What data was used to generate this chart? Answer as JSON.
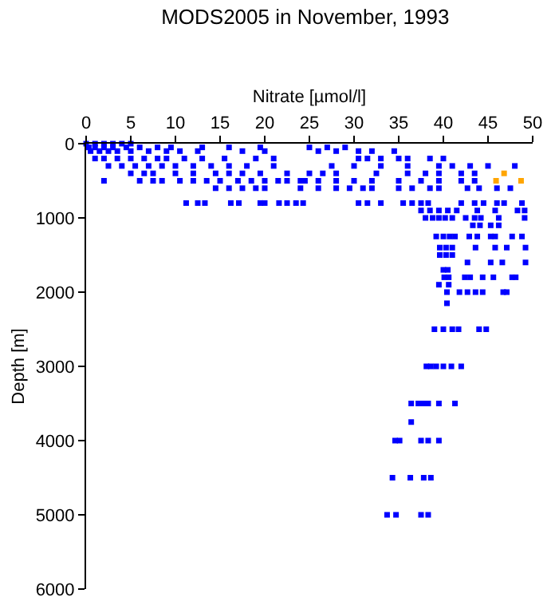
{
  "chart_data": {
    "type": "scatter",
    "title": "MODS2005 in November, 1993",
    "xlabel": "Nitrate [µmol/l]",
    "ylabel": "Depth [m]",
    "xlim": [
      0,
      50
    ],
    "xticks": [
      0,
      5,
      10,
      15,
      20,
      25,
      30,
      35,
      40,
      45,
      50
    ],
    "ylim": [
      6000,
      0
    ],
    "yticks": [
      0,
      1000,
      2000,
      3000,
      4000,
      5000,
      6000
    ],
    "marker": "square",
    "series": [
      {
        "color": "#0000ff",
        "x": [
          0,
          1,
          2,
          3,
          4,
          5,
          0.3,
          1,
          2,
          3,
          4.5,
          6,
          8,
          9.5,
          13,
          16,
          19.5,
          25,
          27,
          29,
          0.5,
          1.5,
          2.5,
          3.5,
          5,
          7,
          9,
          10.5,
          12.5,
          17.5,
          20,
          26,
          28,
          30.5,
          32,
          34.5,
          1,
          2,
          3.5,
          5,
          6.5,
          8,
          9,
          11,
          13,
          15.5,
          19,
          21,
          30.5,
          31.5,
          33,
          35,
          36,
          38.5,
          40,
          2.5,
          4,
          5.5,
          7,
          8.5,
          10,
          12,
          14,
          16,
          18,
          21,
          27.5,
          30,
          33,
          36,
          39.5,
          41,
          43,
          45,
          48,
          5,
          6.5,
          7.5,
          10,
          12,
          14.5,
          16,
          17.5,
          19.5,
          22.5,
          25,
          26.5,
          28,
          32.5,
          36,
          38,
          39.5,
          42,
          43.5,
          2,
          6,
          7.5,
          8.5,
          10.5,
          12,
          13.5,
          15,
          17,
          18.5,
          20,
          21.5,
          22.5,
          24,
          24.5,
          26,
          28,
          30,
          32,
          35,
          37.5,
          39.5,
          42,
          43.5,
          14.5,
          16,
          17.5,
          19,
          20,
          24,
          26,
          28,
          29.5,
          31,
          32,
          35,
          36.5,
          38.5,
          39.5,
          42.7,
          44,
          46,
          47.5,
          11.2,
          12.5,
          13.3,
          16.2,
          17.1,
          19.5,
          20,
          21.6,
          22.5,
          23.5,
          24.3,
          30.5,
          31.5,
          33,
          35.5,
          36.5,
          37.5,
          38.3,
          42,
          43.5,
          44.5,
          46,
          46.8,
          48.8,
          37.5,
          38.5,
          39.5,
          40.5,
          41.5,
          43.8,
          45.8,
          48.3,
          49.1,
          38,
          38.8,
          39.5,
          40.2,
          41,
          42.5,
          43.5,
          44.2,
          46.2,
          49.1,
          43.3,
          44.1,
          45.3,
          46.2,
          39.2,
          40,
          40.7,
          41.3,
          42.9,
          43.8,
          45.3,
          45.8,
          47.7,
          48.8,
          39.6,
          40.3,
          41,
          43.6,
          45.8,
          47.1,
          49.2,
          39.6,
          40.3,
          41,
          42.7,
          45.3,
          46.6,
          49.2,
          40,
          40.5,
          40.1,
          40.6,
          42.4,
          43,
          44.4,
          45.6,
          47.7,
          48.1,
          39.5,
          40.6,
          40.4,
          41.8,
          42.7,
          43.6,
          44.4,
          46.7,
          47.1,
          40.4,
          39,
          40,
          41,
          41.7,
          44,
          44.8,
          38.1,
          38.6,
          39.2,
          40,
          40.9,
          42,
          36.4,
          37.2,
          37.8,
          38.3,
          39.5,
          41.3,
          36.4,
          34.6,
          35.1,
          37.5,
          38.3,
          39.5,
          34.3,
          36.3,
          37.8,
          38.6,
          33.7,
          34.7,
          37.5,
          38.3
        ],
        "values": [
          0,
          0,
          0,
          0,
          0,
          0,
          50,
          50,
          50,
          50,
          50,
          50,
          50,
          50,
          50,
          50,
          50,
          50,
          50,
          50,
          100,
          100,
          100,
          100,
          100,
          100,
          100,
          100,
          100,
          100,
          100,
          100,
          100,
          100,
          100,
          100,
          200,
          200,
          200,
          200,
          200,
          200,
          200,
          200,
          200,
          200,
          200,
          200,
          200,
          200,
          200,
          200,
          200,
          200,
          200,
          300,
          300,
          300,
          300,
          300,
          300,
          300,
          300,
          300,
          300,
          300,
          300,
          300,
          300,
          300,
          300,
          300,
          300,
          300,
          300,
          400,
          400,
          400,
          400,
          400,
          400,
          400,
          400,
          400,
          400,
          400,
          400,
          400,
          400,
          400,
          400,
          400,
          400,
          400,
          500,
          500,
          500,
          500,
          500,
          500,
          500,
          500,
          500,
          500,
          500,
          500,
          500,
          500,
          500,
          500,
          500,
          500,
          500,
          500,
          500,
          500,
          500,
          500,
          600,
          600,
          600,
          600,
          600,
          600,
          600,
          600,
          600,
          600,
          600,
          600,
          600,
          600,
          600,
          600,
          600,
          600,
          600,
          800,
          800,
          800,
          800,
          800,
          800,
          800,
          800,
          800,
          800,
          800,
          800,
          800,
          800,
          800,
          800,
          800,
          800,
          800,
          800,
          800,
          800,
          800,
          800,
          900,
          900,
          900,
          900,
          900,
          900,
          900,
          900,
          900,
          1000,
          1000,
          1000,
          1000,
          1000,
          1000,
          1000,
          1000,
          1000,
          1000,
          1100,
          1100,
          1100,
          1100,
          1250,
          1250,
          1250,
          1250,
          1250,
          1250,
          1250,
          1250,
          1250,
          1250,
          1400,
          1400,
          1400,
          1400,
          1400,
          1400,
          1400,
          1500,
          1500,
          1500,
          1600,
          1600,
          1600,
          1600,
          1700,
          1700,
          1800,
          1800,
          1800,
          1800,
          1800,
          1800,
          1800,
          1800,
          1900,
          1900,
          2000,
          2000,
          2000,
          2000,
          2000,
          2000,
          2000,
          2150,
          2500,
          2500,
          2500,
          2500,
          2500,
          2500,
          3000,
          3000,
          3000,
          3000,
          3000,
          3000,
          3500,
          3500,
          3500,
          3500,
          3500,
          3500,
          3750,
          4000,
          4000,
          4000,
          4000,
          4000,
          4500,
          4500,
          4500,
          4500,
          5000,
          5000,
          5000,
          5000
        ]
      },
      {
        "color": "#ffa500",
        "x": [
          46.8,
          45.9,
          48.7
        ],
        "values": [
          400,
          500,
          500
        ]
      }
    ]
  }
}
